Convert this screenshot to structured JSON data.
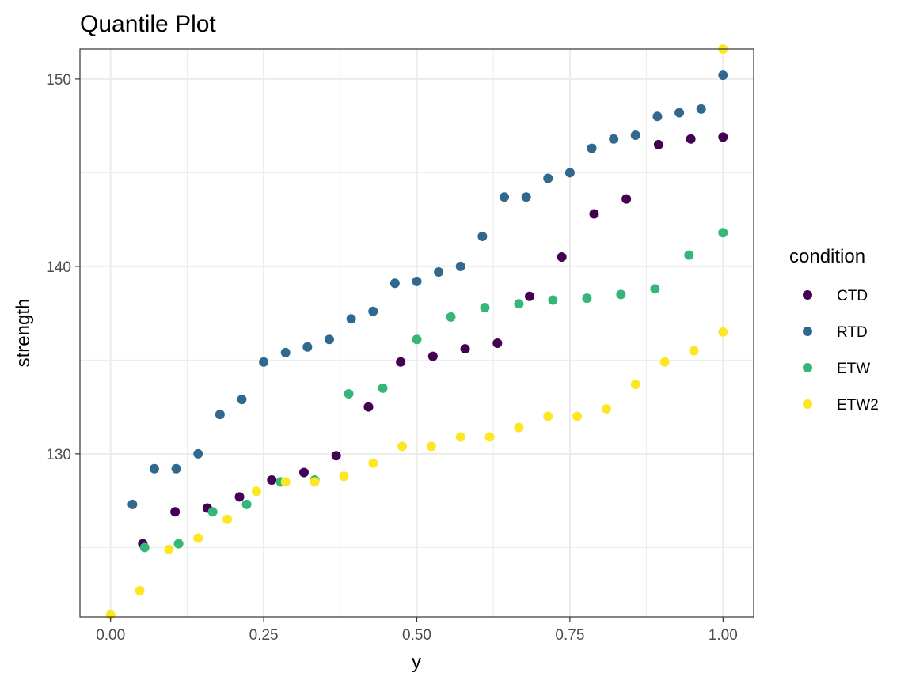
{
  "chart_data": {
    "type": "scatter",
    "title": "Quantile Plot",
    "xlabel": "y",
    "ylabel": "strength",
    "xlim": [
      -0.05,
      1.05
    ],
    "ylim": [
      121.3,
      151.6
    ],
    "x_ticks": [
      0,
      0.25,
      0.5,
      0.75,
      1
    ],
    "x_tick_labels": [
      "0.00",
      "0.25",
      "0.50",
      "0.75",
      "1.00"
    ],
    "y_ticks": [
      130,
      140,
      150
    ],
    "y_tick_labels": [
      "130",
      "140",
      "150"
    ],
    "grid": true,
    "legend": {
      "title": "condition",
      "position": "right"
    },
    "series": [
      {
        "name": "CTD",
        "color": "#440154",
        "points": [
          [
            0.0526,
            125.2
          ],
          [
            0.1053,
            126.9
          ],
          [
            0.1579,
            127.1
          ],
          [
            0.2105,
            127.7
          ],
          [
            0.2632,
            128.6
          ],
          [
            0.3158,
            129.0
          ],
          [
            0.3684,
            129.9
          ],
          [
            0.4211,
            132.5
          ],
          [
            0.4737,
            134.9
          ],
          [
            0.5263,
            135.2
          ],
          [
            0.5789,
            135.6
          ],
          [
            0.6316,
            135.9
          ],
          [
            0.6842,
            138.4
          ],
          [
            0.7368,
            140.5
          ],
          [
            0.7895,
            142.8
          ],
          [
            0.8421,
            143.6
          ],
          [
            0.8947,
            146.5
          ],
          [
            0.9474,
            146.8
          ],
          [
            1.0,
            146.9
          ]
        ]
      },
      {
        "name": "RTD",
        "color": "#31688e",
        "points": [
          [
            0.0357,
            127.3
          ],
          [
            0.0714,
            129.2
          ],
          [
            0.1071,
            129.2
          ],
          [
            0.1429,
            130.0
          ],
          [
            0.1786,
            132.1
          ],
          [
            0.2143,
            132.9
          ],
          [
            0.25,
            134.9
          ],
          [
            0.2857,
            135.4
          ],
          [
            0.3214,
            135.7
          ],
          [
            0.3571,
            136.1
          ],
          [
            0.3929,
            137.2
          ],
          [
            0.4286,
            137.6
          ],
          [
            0.4643,
            139.1
          ],
          [
            0.5,
            139.2
          ],
          [
            0.5357,
            139.7
          ],
          [
            0.5714,
            140.0
          ],
          [
            0.6071,
            141.6
          ],
          [
            0.6429,
            143.7
          ],
          [
            0.6786,
            143.7
          ],
          [
            0.7143,
            144.7
          ],
          [
            0.75,
            145.0
          ],
          [
            0.7857,
            146.3
          ],
          [
            0.8214,
            146.8
          ],
          [
            0.8571,
            147.0
          ],
          [
            0.8929,
            148.0
          ],
          [
            0.9286,
            148.2
          ],
          [
            0.9643,
            148.4
          ],
          [
            1.0,
            150.2
          ]
        ]
      },
      {
        "name": "ETW",
        "color": "#35b779",
        "points": [
          [
            0.0556,
            125.0
          ],
          [
            0.1111,
            125.2
          ],
          [
            0.1667,
            126.9
          ],
          [
            0.2222,
            127.3
          ],
          [
            0.2778,
            128.5
          ],
          [
            0.3333,
            128.6
          ],
          [
            0.3889,
            133.2
          ],
          [
            0.4444,
            133.5
          ],
          [
            0.5,
            136.1
          ],
          [
            0.5556,
            137.3
          ],
          [
            0.6111,
            137.8
          ],
          [
            0.6667,
            138.0
          ],
          [
            0.7222,
            138.2
          ],
          [
            0.7778,
            138.3
          ],
          [
            0.8333,
            138.5
          ],
          [
            0.8889,
            138.8
          ],
          [
            0.9444,
            140.6
          ],
          [
            1.0,
            141.8
          ]
        ]
      },
      {
        "name": "ETW2",
        "color": "#fde725",
        "points": [
          [
            0.0,
            121.4
          ],
          [
            0.0476,
            122.7
          ],
          [
            0.0952,
            124.9
          ],
          [
            0.1429,
            125.5
          ],
          [
            0.1905,
            126.5
          ],
          [
            0.2381,
            128.0
          ],
          [
            0.2857,
            128.5
          ],
          [
            0.3333,
            128.5
          ],
          [
            0.381,
            128.8
          ],
          [
            0.4286,
            129.5
          ],
          [
            0.4762,
            130.4
          ],
          [
            0.5238,
            130.4
          ],
          [
            0.5714,
            130.9
          ],
          [
            0.619,
            130.9
          ],
          [
            0.6667,
            131.4
          ],
          [
            0.7143,
            132.0
          ],
          [
            0.7619,
            132.0
          ],
          [
            0.8095,
            132.4
          ],
          [
            0.8571,
            133.7
          ],
          [
            0.9048,
            134.9
          ],
          [
            0.9524,
            135.5
          ],
          [
            1.0,
            136.5
          ],
          [
            1.0,
            151.6
          ]
        ]
      }
    ]
  }
}
